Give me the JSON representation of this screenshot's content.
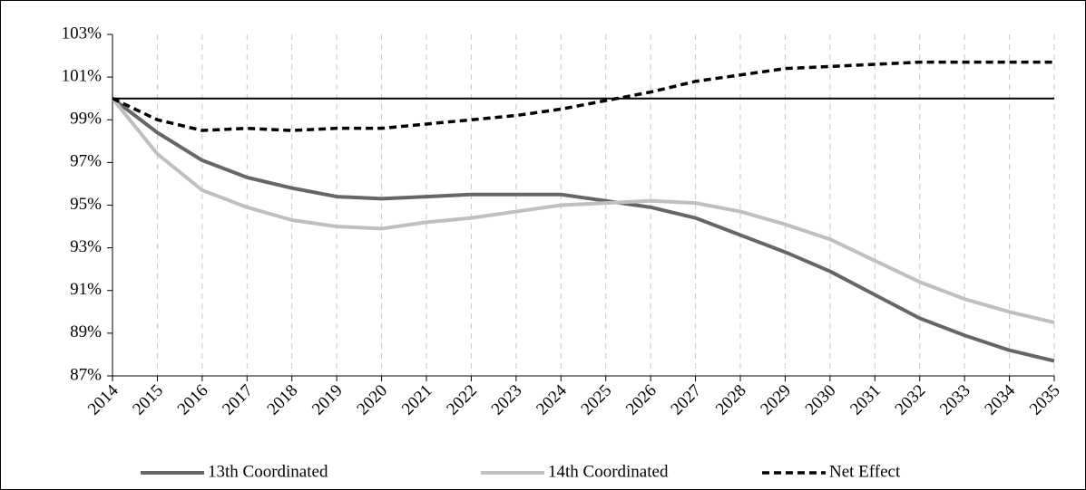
{
  "chart_data": {
    "type": "line",
    "x": [
      2014,
      2015,
      2016,
      2017,
      2018,
      2019,
      2020,
      2021,
      2022,
      2023,
      2024,
      2025,
      2026,
      2027,
      2028,
      2029,
      2030,
      2031,
      2032,
      2033,
      2034,
      2035
    ],
    "series": [
      {
        "name": "13th Coordinated",
        "color": "#666666",
        "dashed": false,
        "values": [
          100,
          98.4,
          97.1,
          96.3,
          95.8,
          95.4,
          95.3,
          95.4,
          95.5,
          95.5,
          95.5,
          95.2,
          94.9,
          94.4,
          93.6,
          92.8,
          91.9,
          90.8,
          89.7,
          88.9,
          88.2,
          87.7
        ]
      },
      {
        "name": "14th Coordinated",
        "color": "#bfbfbf",
        "dashed": false,
        "values": [
          100,
          97.4,
          95.7,
          94.9,
          94.3,
          94.0,
          93.9,
          94.2,
          94.4,
          94.7,
          95.0,
          95.1,
          95.2,
          95.1,
          94.7,
          94.1,
          93.4,
          92.4,
          91.4,
          90.6,
          90.0,
          89.5
        ]
      },
      {
        "name": "Net Effect",
        "color": "#000000",
        "dashed": true,
        "values": [
          100,
          99.0,
          98.5,
          98.6,
          98.5,
          98.6,
          98.6,
          98.8,
          99.0,
          99.2,
          99.5,
          99.9,
          100.3,
          100.8,
          101.1,
          101.4,
          101.5,
          101.6,
          101.7,
          101.7,
          101.7,
          101.7
        ]
      }
    ],
    "reference_line": 100,
    "xlim": [
      2014,
      2035
    ],
    "xticks": [
      2014,
      2015,
      2016,
      2017,
      2018,
      2019,
      2020,
      2021,
      2022,
      2023,
      2024,
      2025,
      2026,
      2027,
      2028,
      2029,
      2030,
      2031,
      2032,
      2033,
      2034,
      2035
    ],
    "ylim": [
      87,
      103
    ],
    "yticks": [
      {
        "value": 87,
        "label": "87%"
      },
      {
        "value": 89,
        "label": "89%"
      },
      {
        "value": 91,
        "label": "91%"
      },
      {
        "value": 93,
        "label": "93%"
      },
      {
        "value": 95,
        "label": "95%"
      },
      {
        "value": 97,
        "label": "97%"
      },
      {
        "value": 99,
        "label": "99%"
      },
      {
        "value": 101,
        "label": "101%"
      },
      {
        "value": 103,
        "label": "103%"
      }
    ],
    "grid": true,
    "legend": "bottom"
  }
}
